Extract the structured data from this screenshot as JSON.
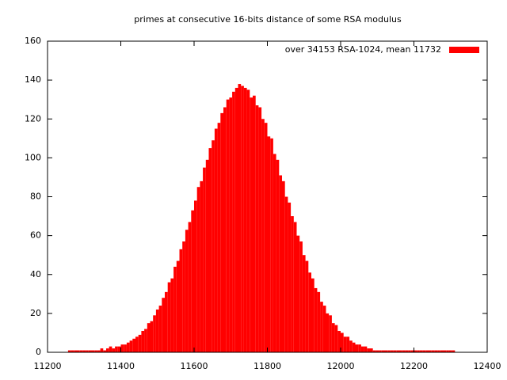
{
  "chart_data": {
    "type": "histogram",
    "title": "primes at consecutive 16-bits distance of some RSA modulus",
    "bins": [
      11256,
      11264,
      11272,
      11280,
      11288,
      11296,
      11304,
      11312,
      11320,
      11328,
      11336,
      11344,
      11352,
      11360,
      11368,
      11376,
      11384,
      11392,
      11400,
      11408,
      11416,
      11424,
      11432,
      11440,
      11448,
      11456,
      11464,
      11472,
      11480,
      11488,
      11496,
      11504,
      11512,
      11520,
      11528,
      11536,
      11544,
      11552,
      11560,
      11568,
      11576,
      11584,
      11592,
      11600,
      11608,
      11616,
      11624,
      11632,
      11640,
      11648,
      11656,
      11664,
      11672,
      11680,
      11688,
      11696,
      11704,
      11712,
      11720,
      11728,
      11736,
      11744,
      11752,
      11760,
      11768,
      11776,
      11784,
      11792,
      11800,
      11808,
      11816,
      11824,
      11832,
      11840,
      11848,
      11856,
      11864,
      11872,
      11880,
      11888,
      11896,
      11904,
      11912,
      11920,
      11928,
      11936,
      11944,
      11952,
      11960,
      11968,
      11976,
      11984,
      11992,
      12000,
      12008,
      12016,
      12024,
      12032,
      12040,
      12048,
      12056,
      12064,
      12072,
      12080,
      12088,
      12096,
      12104,
      12112,
      12120,
      12128,
      12136,
      12144,
      12152,
      12160,
      12168,
      12176,
      12184,
      12192,
      12200,
      12208,
      12216,
      12224,
      12232,
      12240,
      12248,
      12256,
      12264,
      12272,
      12280,
      12288,
      12296,
      12304,
      12312
    ],
    "series": [
      {
        "name": "over 34153 RSA-1024, mean 11732",
        "color": "#ff0000",
        "values": [
          1,
          1,
          1,
          1,
          1,
          1,
          1,
          1,
          1,
          1,
          1,
          2,
          1,
          2,
          3,
          2,
          3,
          3,
          4,
          4,
          5,
          6,
          7,
          8,
          9,
          11,
          12,
          15,
          16,
          19,
          22,
          24,
          28,
          31,
          36,
          38,
          44,
          47,
          53,
          57,
          63,
          67,
          73,
          78,
          85,
          88,
          95,
          99,
          105,
          109,
          115,
          118,
          123,
          126,
          130,
          131,
          134,
          136,
          138,
          137,
          136,
          135,
          131,
          132,
          127,
          126,
          120,
          118,
          111,
          110,
          102,
          99,
          91,
          88,
          80,
          77,
          70,
          67,
          60,
          57,
          50,
          47,
          41,
          38,
          33,
          31,
          26,
          24,
          20,
          19,
          15,
          14,
          11,
          10,
          8,
          8,
          6,
          5,
          4,
          4,
          3,
          3,
          2,
          2,
          1,
          1,
          1,
          1,
          1,
          1,
          1,
          1,
          1,
          1,
          1,
          1,
          1,
          1,
          1,
          1,
          1,
          1,
          1,
          1,
          1,
          1,
          1,
          1,
          1,
          1,
          1,
          1
        ]
      }
    ],
    "xlim": [
      11200,
      12400
    ],
    "ylim": [
      0,
      160
    ],
    "xticks": [
      11200,
      11400,
      11600,
      11800,
      12000,
      12200,
      12400
    ],
    "yticks": [
      0,
      20,
      40,
      60,
      80,
      100,
      120,
      140,
      160
    ],
    "legend": "top-right"
  }
}
